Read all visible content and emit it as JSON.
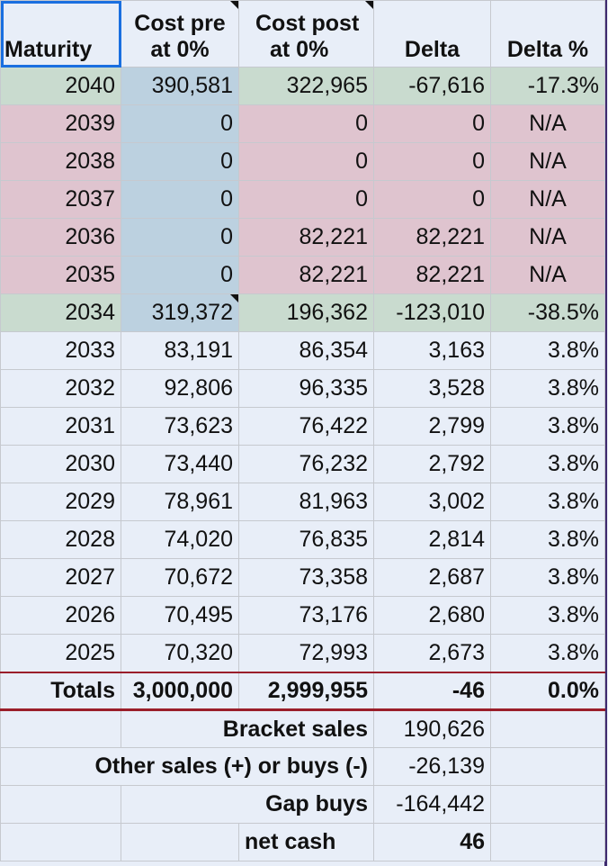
{
  "headers": {
    "maturity": "Maturity",
    "cost_pre_line1": "Cost pre",
    "cost_pre_line2": "at 0%",
    "cost_post_line1": "Cost post",
    "cost_post_line2": "at 0%",
    "delta": "Delta",
    "delta_pct": "Delta %"
  },
  "rows": [
    {
      "maturity": "2040",
      "pre": "390,581",
      "post": "322,965",
      "delta": "-67,616",
      "pct": "-17.3%",
      "style": "green"
    },
    {
      "maturity": "2039",
      "pre": "0",
      "post": "0",
      "delta": "0",
      "pct": "N/A",
      "style": "pink"
    },
    {
      "maturity": "2038",
      "pre": "0",
      "post": "0",
      "delta": "0",
      "pct": "N/A",
      "style": "pink"
    },
    {
      "maturity": "2037",
      "pre": "0",
      "post": "0",
      "delta": "0",
      "pct": "N/A",
      "style": "pink"
    },
    {
      "maturity": "2036",
      "pre": "0",
      "post": "82,221",
      "delta": "82,221",
      "pct": "N/A",
      "style": "pink"
    },
    {
      "maturity": "2035",
      "pre": "0",
      "post": "82,221",
      "delta": "82,221",
      "pct": "N/A",
      "style": "pink"
    },
    {
      "maturity": "2034",
      "pre": "319,372",
      "post": "196,362",
      "delta": "-123,010",
      "pct": "-38.5%",
      "style": "green"
    },
    {
      "maturity": "2033",
      "pre": "83,191",
      "post": "86,354",
      "delta": "3,163",
      "pct": "3.8%",
      "style": "plain"
    },
    {
      "maturity": "2032",
      "pre": "92,806",
      "post": "96,335",
      "delta": "3,528",
      "pct": "3.8%",
      "style": "plain"
    },
    {
      "maturity": "2031",
      "pre": "73,623",
      "post": "76,422",
      "delta": "2,799",
      "pct": "3.8%",
      "style": "plain"
    },
    {
      "maturity": "2030",
      "pre": "73,440",
      "post": "76,232",
      "delta": "2,792",
      "pct": "3.8%",
      "style": "plain"
    },
    {
      "maturity": "2029",
      "pre": "78,961",
      "post": "81,963",
      "delta": "3,002",
      "pct": "3.8%",
      "style": "plain"
    },
    {
      "maturity": "2028",
      "pre": "74,020",
      "post": "76,835",
      "delta": "2,814",
      "pct": "3.8%",
      "style": "plain"
    },
    {
      "maturity": "2027",
      "pre": "70,672",
      "post": "73,358",
      "delta": "2,687",
      "pct": "3.8%",
      "style": "plain"
    },
    {
      "maturity": "2026",
      "pre": "70,495",
      "post": "73,176",
      "delta": "2,680",
      "pct": "3.8%",
      "style": "plain"
    },
    {
      "maturity": "2025",
      "pre": "70,320",
      "post": "72,993",
      "delta": "2,673",
      "pct": "3.8%",
      "style": "plain"
    }
  ],
  "totals": {
    "label": "Totals",
    "pre": "3,000,000",
    "post": "2,999,955",
    "delta": "-46",
    "pct": "0.0%"
  },
  "summary": {
    "bracket_sales_label": "Bracket sales",
    "bracket_sales_value": "190,626",
    "other_sales_label": "Other sales (+) or buys (-)",
    "other_sales_value": "-26,139",
    "gap_buys_label": "Gap buys",
    "gap_buys_value": "-164,442",
    "net_cash_label": "net cash",
    "net_cash_value": "46"
  },
  "colors": {
    "green_row": "#c9dbcf",
    "pink_row": "#dfc4cf",
    "blue_column": "#bcd1e0",
    "totals_border": "#9a1e2a",
    "selection": "#1a6fe0"
  }
}
